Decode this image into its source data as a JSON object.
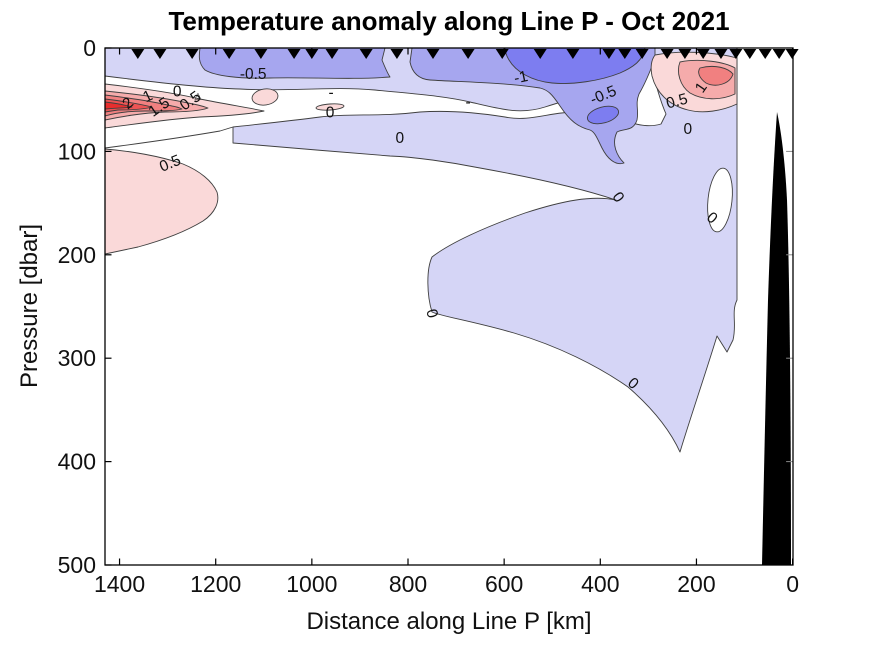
{
  "title": "Temperature anomaly along Line P - Oct 2021",
  "x_axis": {
    "label": "Distance along Line P [km]",
    "ticks": [
      1400,
      1200,
      1000,
      800,
      600,
      400,
      200,
      0
    ],
    "range": [
      1430,
      0
    ],
    "direction": "reversed"
  },
  "y_axis": {
    "label": "Pressure [dbar]",
    "ticks": [
      0,
      100,
      200,
      300,
      400,
      500
    ],
    "range": [
      0,
      500
    ],
    "direction": "increasing downward"
  },
  "colors": {
    "background": "#ffffff",
    "axis": "#000000",
    "contour_line": "#3f3f3f",
    "land": "#000000",
    "station_marker": "#000000",
    "white_band": "#ffffff"
  },
  "chart_data": {
    "type": "heatmap",
    "subtype": "filled contour vertical ocean section (anomaly)",
    "title": "Temperature anomaly along Line P - Oct 2021",
    "xlabel": "Distance along Line P [km]",
    "ylabel": "Pressure [dbar]",
    "xlim": [
      1430,
      0
    ],
    "ylim": [
      0,
      500
    ],
    "grid": false,
    "legend": "none",
    "contour_levels": [
      -1.5,
      -1,
      -0.5,
      0,
      0.5,
      1,
      1.5,
      2
    ],
    "level_colors": [
      {
        "range": "-1.5 to -1",
        "color": "#7d7df0"
      },
      {
        "range": "-1 to -0.5",
        "color": "#a6a6ef"
      },
      {
        "range": "-0.5 to 0",
        "color": "#d5d5f6"
      },
      {
        "range": "0 (white band)",
        "color": "#ffffff"
      },
      {
        "range": "0 to 0.5",
        "color": "#fad9d9"
      },
      {
        "range": "0.5 to 1",
        "color": "#f5abab"
      },
      {
        "range": "1 to 1.5",
        "color": "#f18080"
      },
      {
        "range": "1.5 to 2",
        "color": "#ed5454"
      },
      {
        "range": "above 2",
        "color": "#e72e2e"
      }
    ],
    "station_marker": "filled downward triangle along top axis",
    "station_distances_km": [
      1362,
      1316,
      1249,
      1172,
      1106,
      1037,
      1000,
      958,
      887,
      823,
      748,
      675,
      604,
      525,
      457,
      382,
      349,
      313,
      261,
      224,
      186,
      149,
      118,
      89,
      57,
      28,
      1
    ],
    "land_mask": "black wedge near coast (0-60 km) from ~60 dbar down to 500 dbar",
    "features": [
      {
        "desc": "warm anomaly core >2 at far offshore end (P26 area)",
        "km": 1390,
        "dbar": 55,
        "value": 2
      },
      {
        "desc": "warm anomaly 0-0.5 blob offshore",
        "km": 1290,
        "dbar": 180,
        "value": 0.5
      },
      {
        "desc": "cold surface anomaly band, minimum below -1",
        "km": 500,
        "dbar": 20,
        "value": -1.2
      },
      {
        "desc": "warm surface patch near coast",
        "km": 180,
        "dbar": 25,
        "value": 1
      },
      {
        "desc": "broad weak cool anomaly (0 to -0.5) mid-depth",
        "km": 400,
        "dbar": 250,
        "value": -0.25
      }
    ],
    "contour_labels": [
      {
        "text": "-0.5",
        "km": 1122,
        "dbar": 30,
        "rot": 0
      },
      {
        "text": "-1",
        "km": 563,
        "dbar": 33,
        "rot": -12
      },
      {
        "text": "-0.5",
        "km": 390,
        "dbar": 50,
        "rot": -22
      },
      {
        "text": "0.5",
        "km": 238,
        "dbar": 56,
        "rot": -15
      },
      {
        "text": "1",
        "km": 182,
        "dbar": 41,
        "rot": -55
      },
      {
        "text": "0",
        "km": 218,
        "dbar": 83,
        "rot": 0
      },
      {
        "text": "0",
        "km": 962,
        "dbar": 67,
        "rot": 0
      },
      {
        "text": "0",
        "km": 817,
        "dbar": 92,
        "rot": 0
      },
      {
        "text": "2",
        "km": 1376,
        "dbar": 57,
        "rot": -40
      },
      {
        "text": "1",
        "km": 1337,
        "dbar": 51,
        "rot": -25
      },
      {
        "text": "1.5",
        "km": 1312,
        "dbar": 61,
        "rot": -35
      },
      {
        "text": "0",
        "km": 1280,
        "dbar": 47,
        "rot": 0
      },
      {
        "text": "0.5",
        "km": 1247,
        "dbar": 55,
        "rot": -35
      },
      {
        "text": "0.5",
        "km": 1291,
        "dbar": 116,
        "rot": -22
      },
      {
        "text": "0",
        "km": 371,
        "dbar": 147,
        "rot": 55
      },
      {
        "text": "0",
        "km": 174,
        "dbar": 168,
        "rot": 40
      },
      {
        "text": "0",
        "km": 760,
        "dbar": 258,
        "rot": 75
      },
      {
        "text": "0",
        "km": 338,
        "dbar": 328,
        "rot": 40
      },
      {
        "text": "-",
        "km": 960,
        "dbar": 48,
        "rot": 0
      },
      {
        "text": "-",
        "km": 675,
        "dbar": 57,
        "rot": 0
      },
      {
        "text": "△",
        "km": 1237,
        "dbar": 49,
        "rot": 0,
        "size": 9
      }
    ]
  }
}
